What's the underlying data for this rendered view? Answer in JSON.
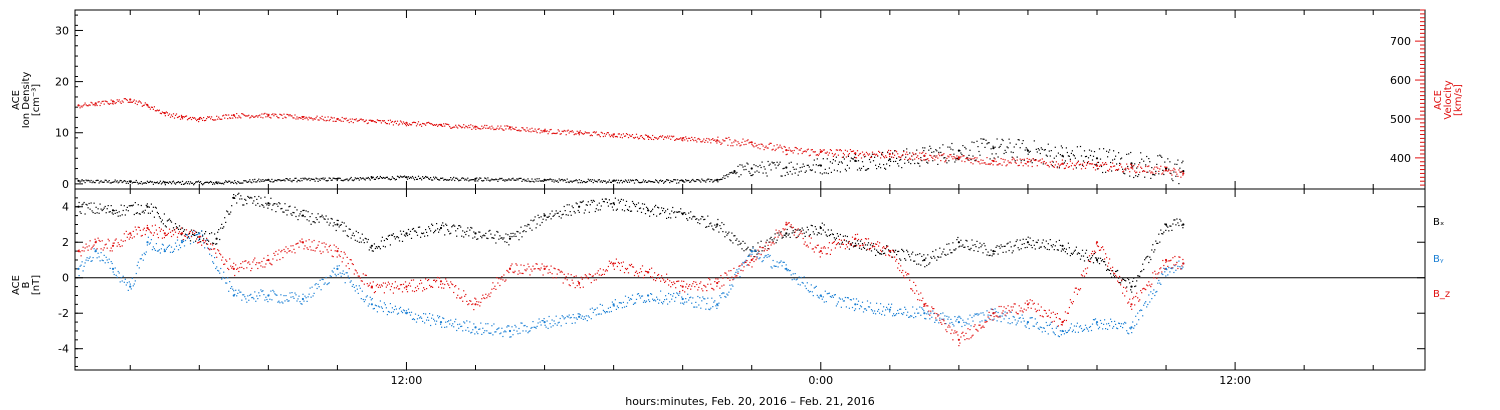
{
  "colors": {
    "axis": "#000000",
    "red": "#e01010",
    "blue": "#1a7fd4",
    "black": "#000000"
  },
  "footer": {
    "xlabel": "hours:minutes, Feb. 20, 2016 – Feb. 21, 2016"
  },
  "chart_data": [
    {
      "type": "scatter",
      "panel": "top",
      "xlabel": "hours:minutes, Feb. 20, 2016 – Feb. 21, 2016",
      "x_unit": "hours since 2016-02-20 00:00",
      "xlim": [
        2.4,
        41.5
      ],
      "x_ticks": [
        {
          "x": 12,
          "label": "12:00"
        },
        {
          "x": 24,
          "label": "0:00"
        },
        {
          "x": 36,
          "label": "12:00"
        }
      ],
      "ylabel_left": [
        "ACE",
        "Ion Density",
        "[cm⁻³]"
      ],
      "ylim_left": [
        -1,
        34
      ],
      "yticks_left": [
        0,
        10,
        20,
        30
      ],
      "ylabel_right": [
        "ACE",
        "Velocity",
        "[km/s]"
      ],
      "ylim_right": [
        320,
        780
      ],
      "yticks_right": [
        400,
        500,
        600,
        700
      ],
      "series": [
        {
          "axis": "left",
          "color": "#000000",
          "x": [
            2.5,
            4.0,
            5.0,
            6.5,
            8.0,
            10.0,
            11.0,
            12.0,
            14.0,
            16.0,
            18.0,
            20.0,
            21.0,
            21.5,
            22.0,
            23.0,
            24.0,
            25.0,
            26.0,
            27.0,
            28.0,
            29.0,
            30.0,
            31.0,
            32.0,
            33.0,
            34.0,
            34.5
          ],
          "values": [
            0.6,
            0.5,
            0.3,
            0.3,
            0.8,
            1.0,
            1.2,
            1.3,
            1.0,
            0.8,
            0.6,
            0.6,
            0.8,
            2.5,
            3.0,
            3.2,
            3.6,
            4.5,
            4.8,
            5.5,
            6.5,
            7.0,
            6.5,
            5.5,
            5.0,
            4.0,
            3.0,
            2.5
          ]
        },
        {
          "axis": "right",
          "color": "#e01010",
          "x": [
            2.5,
            3.0,
            3.5,
            4.0,
            4.5,
            5.0,
            5.5,
            6.0,
            7.0,
            8.0,
            9.0,
            10.0,
            11.0,
            12.0,
            13.0,
            14.0,
            15.0,
            16.0,
            17.0,
            18.0,
            19.0,
            20.0,
            21.0,
            22.0,
            23.0,
            24.0,
            25.0,
            26.0,
            27.0,
            28.0,
            29.0,
            30.0,
            31.0,
            32.0,
            33.0,
            34.0,
            34.5
          ],
          "values": [
            535,
            540,
            545,
            550,
            535,
            515,
            505,
            500,
            510,
            510,
            505,
            500,
            495,
            490,
            485,
            480,
            478,
            470,
            465,
            460,
            455,
            450,
            445,
            440,
            420,
            415,
            412,
            410,
            405,
            400,
            392,
            390,
            385,
            380,
            375,
            368,
            360
          ]
        }
      ]
    },
    {
      "type": "scatter",
      "panel": "bottom",
      "xlim": [
        2.4,
        41.5
      ],
      "ylabel_left": [
        "ACE",
        "B",
        "[nT]"
      ],
      "ylim_left": [
        -5.2,
        5.0
      ],
      "yticks_left": [
        -4,
        -2,
        0,
        2,
        4
      ],
      "zero_line": true,
      "series": [
        {
          "name": "Bₓ",
          "color": "#000000",
          "x": [
            2.5,
            3.5,
            4.5,
            5.5,
            6.5,
            7.0,
            8.0,
            9.0,
            10.0,
            11.0,
            12.0,
            13.0,
            14.0,
            15.0,
            16.0,
            17.0,
            18.0,
            19.0,
            20.0,
            21.0,
            22.0,
            23.0,
            24.0,
            25.0,
            26.0,
            27.0,
            28.0,
            29.0,
            30.0,
            31.0,
            32.0,
            33.0,
            34.0,
            34.5
          ],
          "values": [
            4.0,
            3.8,
            4.0,
            2.5,
            2.2,
            4.5,
            4.2,
            3.5,
            3.0,
            1.8,
            2.5,
            2.8,
            2.5,
            2.2,
            3.5,
            4.0,
            4.2,
            3.8,
            3.6,
            3.0,
            1.5,
            2.5,
            2.8,
            1.8,
            1.5,
            1.0,
            2.0,
            1.5,
            2.0,
            1.8,
            1.0,
            -0.5,
            3.0,
            3.0
          ]
        },
        {
          "name": "Bᵧ",
          "color": "#1a7fd4",
          "x": [
            2.5,
            3.0,
            3.5,
            4.0,
            4.5,
            5.0,
            5.5,
            6.0,
            7.0,
            8.0,
            9.0,
            10.0,
            11.0,
            12.0,
            13.0,
            14.0,
            15.0,
            16.0,
            17.0,
            18.0,
            19.0,
            20.0,
            21.0,
            22.0,
            23.0,
            24.0,
            25.0,
            26.0,
            27.0,
            28.0,
            29.0,
            30.0,
            31.0,
            32.0,
            33.0,
            34.0,
            34.5
          ],
          "values": [
            0.5,
            1.5,
            0.5,
            -0.5,
            2.0,
            1.5,
            2.0,
            2.5,
            -1.0,
            -1.0,
            -1.2,
            0.5,
            -1.5,
            -2.0,
            -2.5,
            -2.8,
            -3.0,
            -2.5,
            -2.2,
            -1.5,
            -1.0,
            -1.2,
            -1.5,
            1.5,
            0.5,
            -1.0,
            -1.5,
            -1.8,
            -2.0,
            -2.5,
            -2.0,
            -2.5,
            -3.0,
            -2.5,
            -2.8,
            0.5,
            0.8
          ]
        },
        {
          "name": "B_z",
          "color": "#e01010",
          "x": [
            2.5,
            3.0,
            3.5,
            4.0,
            4.5,
            5.0,
            5.5,
            6.0,
            7.0,
            8.0,
            9.0,
            10.0,
            11.0,
            12.0,
            13.0,
            14.0,
            15.0,
            16.0,
            17.0,
            18.0,
            19.0,
            20.0,
            21.0,
            22.0,
            23.0,
            24.0,
            25.0,
            26.0,
            27.0,
            28.0,
            29.0,
            30.0,
            31.0,
            32.0,
            33.0,
            34.0,
            34.5
          ],
          "values": [
            1.5,
            2.0,
            1.8,
            2.5,
            2.8,
            2.5,
            2.5,
            2.3,
            0.5,
            1.0,
            2.0,
            1.5,
            -0.5,
            -0.5,
            -0.2,
            -1.5,
            0.5,
            0.5,
            -0.3,
            0.8,
            0.3,
            -0.5,
            -0.3,
            1.0,
            3.0,
            1.5,
            2.2,
            1.5,
            -1.5,
            -3.5,
            -2.0,
            -1.5,
            -2.5,
            2.0,
            -1.5,
            1.0,
            0.8
          ]
        }
      ]
    }
  ]
}
